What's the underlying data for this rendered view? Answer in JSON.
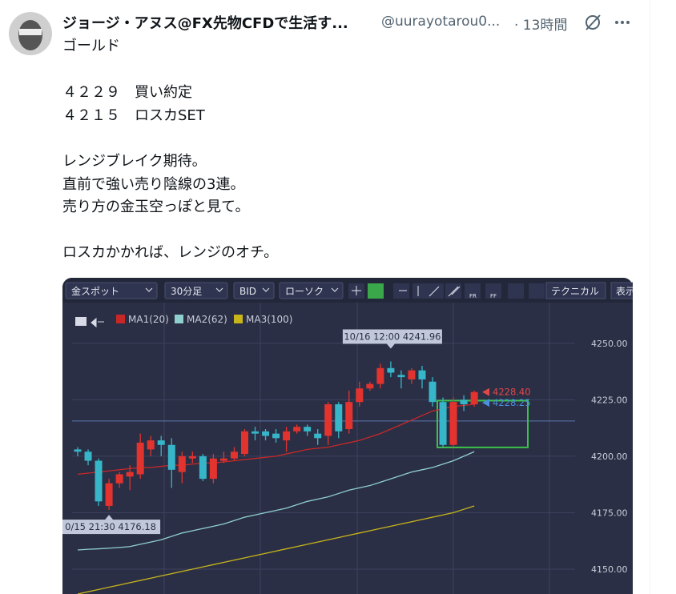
{
  "tweet": {
    "author": "ジョージ・アヌス@FX先物CFDで生活す...",
    "handle": "@uurayotarou0...",
    "time": "· 13時間",
    "paragraphs": [
      [
        "ゴールド"
      ],
      [
        "４２２９　買い約定",
        "４２１５　ロスカSET"
      ],
      [
        "レンジブレイク期待。",
        "直前で強い売り陰線の3連。",
        "売り方の金玉空っぽと見て。"
      ],
      [
        "ロスカかかれば、レンジのオチ。"
      ]
    ]
  },
  "chart_data": {
    "type": "candlestick",
    "toolbar": {
      "symbol": "金スポット",
      "timeframe": "30分足",
      "price": "BID",
      "style": "ローソク",
      "technical": "テクニカル",
      "display": "表示",
      "icon_texts": [
        "FR",
        "FF"
      ]
    },
    "ylim": [
      4139,
      4268
    ],
    "yticks": [
      {
        "value": 4150,
        "label": "4150.00"
      },
      {
        "value": 4175,
        "label": "4175.00"
      },
      {
        "value": 4200,
        "label": "4200.00"
      },
      {
        "value": 4225,
        "label": "4225.00"
      },
      {
        "value": 4250,
        "label": "4250.00"
      }
    ],
    "grid": true,
    "up_color": "#e2332f",
    "down_color": "#36b6c8",
    "open": [
      4203,
      4202,
      4198,
      4178,
      4188,
      4191,
      4192,
      4203,
      4207,
      4205,
      4193,
      4199,
      4200,
      4190,
      4198,
      4199,
      4201,
      4211,
      4211,
      4210,
      4207,
      4211,
      4213,
      4210,
      4209,
      4223,
      4212,
      4224,
      4230,
      4232,
      4239,
      4236,
      4234,
      4238,
      4233,
      4224,
      4205,
      4225,
      4223
    ],
    "high": [
      4204,
      4203,
      4199,
      4190,
      4193,
      4196,
      4210,
      4209,
      4209,
      4208,
      4202,
      4202,
      4201,
      4201,
      4202,
      4204,
      4212,
      4213,
      4212,
      4212,
      4213,
      4214,
      4214,
      4212,
      4224,
      4224,
      4229,
      4233,
      4233,
      4241,
      4241.96,
      4238,
      4239,
      4240,
      4235,
      4226,
      4226,
      4227,
      4229
    ],
    "low": [
      4200,
      4196,
      4178,
      4176.18,
      4186,
      4185,
      4190,
      4200,
      4200,
      4186,
      4188,
      4197,
      4189,
      4188,
      4197,
      4198,
      4200,
      4207,
      4207,
      4206,
      4202,
      4210,
      4209,
      4205,
      4205,
      4208,
      4210,
      4222,
      4229,
      4230,
      4235,
      4230,
      4232,
      4230,
      4222,
      4204,
      4204,
      4220,
      4222
    ],
    "close": [
      4202,
      4198,
      4180,
      4188,
      4192,
      4193,
      4206,
      4207,
      4205,
      4194,
      4200,
      4200,
      4190,
      4199,
      4199,
      4202,
      4211,
      4210,
      4209,
      4208,
      4211,
      4213,
      4211,
      4208,
      4223,
      4211,
      4224,
      4230,
      4232,
      4239,
      4237,
      4235,
      4238,
      4234,
      4224,
      4205,
      4224,
      4223,
      4228.4
    ],
    "series": [
      {
        "name": "MA1(20)",
        "color": "#c62828",
        "values": [
          4192,
          4192.5,
          4193,
          4193.5,
          4194,
          4194.5,
          4195,
          4195,
          4195.5,
          4196,
          4196,
          4196.5,
          4197,
          4197,
          4197.5,
          4198,
          4198.5,
          4199,
          4199.5,
          4200,
          4201,
          4202,
          4203,
          4203.5,
          4204,
          4205,
          4206,
          4207,
          4208.5,
          4210,
          4212,
          4214,
          4216,
          4218,
          4220,
          4221,
          4222,
          4222.5,
          4223
        ]
      },
      {
        "name": "MA2(62)",
        "color": "#8fcfd0",
        "values": [
          4158.5,
          4158.8,
          4159,
          4159.3,
          4159.6,
          4160,
          4161,
          4162,
          4163,
          4164.5,
          4166,
          4167,
          4168,
          4169,
          4170,
          4171.5,
          4173,
          4174,
          4175,
          4176,
          4177,
          4178.5,
          4180,
          4181,
          4182,
          4183.5,
          4185,
          4186,
          4187,
          4188.5,
          4190,
          4191.5,
          4193,
          4194,
          4195,
          4196.5,
          4198,
          4200,
          4202
        ]
      },
      {
        "name": "MA3(100)",
        "color": "#c8b51a",
        "values": [
          4139,
          4140,
          4141,
          4142,
          4143,
          4144,
          4145,
          4146,
          4147,
          4148,
          4149,
          4150,
          4151,
          4152,
          4153,
          4154,
          4155,
          4156,
          4157,
          4158,
          4159,
          4160,
          4161,
          4162,
          4163,
          4164,
          4165,
          4166,
          4167,
          4168,
          4169,
          4170,
          4171,
          4172,
          4173,
          4174,
          4175,
          4176.5,
          4178
        ]
      }
    ],
    "annotations": [
      {
        "label": "10/16 12:00 4241.96",
        "value": 4241.96,
        "at": "high"
      },
      {
        "label": "0/15 21:30 4176.18",
        "value": 4176.18,
        "at": "low"
      }
    ],
    "price_labels": [
      {
        "label": "4228.40",
        "value": 4228.4,
        "color": "#e04848"
      },
      {
        "label": "4228.25",
        "value": 4228.25,
        "color": "#4a8fe0"
      }
    ],
    "hline": 4215.6,
    "range_box": {
      "low": 4203.9,
      "high": 4224.6,
      "color": "#3bc24a"
    }
  }
}
